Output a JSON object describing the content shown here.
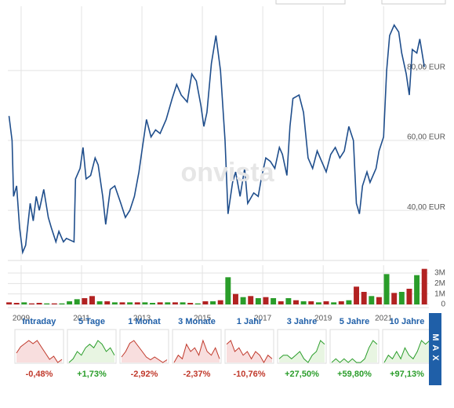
{
  "chart_data": [
    {
      "type": "line",
      "color": "#1f4e8c",
      "grid": true,
      "xlim": [
        2008.56,
        2022.5
      ],
      "xticks": [
        2009,
        2011,
        2013,
        2015,
        2017,
        2019,
        2021
      ],
      "ylim": [
        25,
        95
      ],
      "yticks": [
        {
          "value": 40,
          "label": "40,00 EUR"
        },
        {
          "value": 60,
          "label": "60,00 EUR"
        },
        {
          "value": 80,
          "label": "80,00 EUR"
        }
      ],
      "x": [
        2008.6,
        2008.7,
        2008.75,
        2008.85,
        2008.95,
        2009.05,
        2009.15,
        2009.3,
        2009.4,
        2009.5,
        2009.6,
        2009.75,
        2009.9,
        2010.0,
        2010.15,
        2010.25,
        2010.4,
        2010.5,
        2010.75,
        2010.8,
        2010.95,
        2011.05,
        2011.15,
        2011.3,
        2011.45,
        2011.55,
        2011.7,
        2011.8,
        2011.95,
        2012.1,
        2012.3,
        2012.45,
        2012.6,
        2012.75,
        2012.9,
        2013.0,
        2013.15,
        2013.3,
        2013.45,
        2013.6,
        2013.8,
        2014.0,
        2014.15,
        2014.3,
        2014.5,
        2014.65,
        2014.8,
        2014.95,
        2015.05,
        2015.15,
        2015.3,
        2015.45,
        2015.6,
        2015.75,
        2015.85,
        2016.0,
        2016.1,
        2016.25,
        2016.4,
        2016.5,
        2016.7,
        2016.85,
        2016.95,
        2017.1,
        2017.25,
        2017.4,
        2017.55,
        2017.65,
        2017.8,
        2017.9,
        2018.0,
        2018.2,
        2018.35,
        2018.5,
        2018.65,
        2018.8,
        2018.95,
        2019.1,
        2019.25,
        2019.4,
        2019.55,
        2019.7,
        2019.85,
        2020.0,
        2020.1,
        2020.2,
        2020.3,
        2020.45,
        2020.55,
        2020.75,
        2020.85,
        2021.0,
        2021.1,
        2021.2,
        2021.35,
        2021.5,
        2021.6,
        2021.75,
        2021.85,
        2021.95,
        2022.1,
        2022.2,
        2022.35
      ],
      "values": [
        67,
        60,
        44,
        47,
        35,
        28,
        30,
        42,
        37,
        44,
        40,
        46,
        38,
        35,
        31,
        34,
        31,
        32,
        31,
        49,
        52,
        58,
        49,
        50,
        55,
        53,
        44,
        36,
        46,
        47,
        42,
        38,
        40,
        44,
        51,
        57,
        66,
        61,
        63,
        62,
        66,
        72,
        76,
        73,
        71,
        79,
        77,
        70,
        64,
        68,
        82,
        90,
        80,
        60,
        39,
        48,
        51,
        44,
        52,
        42,
        45,
        44,
        49,
        55,
        54,
        52,
        58,
        56,
        50,
        64,
        72,
        73,
        68,
        55,
        52,
        57,
        54,
        51,
        56,
        58,
        55,
        57,
        64,
        60,
        42,
        39,
        47,
        51,
        48,
        52,
        57,
        61,
        80,
        90,
        93,
        91,
        85,
        79,
        73,
        86,
        85,
        89,
        81
      ]
    },
    {
      "type": "bar",
      "xlim": [
        2008.56,
        2022.5
      ],
      "xticks": [
        2009,
        2011,
        2013,
        2015,
        2017,
        2019,
        2021
      ],
      "ylim": [
        0,
        3.6
      ],
      "yticks": [
        0,
        {
          "value": 1,
          "label": "1M"
        },
        {
          "value": 2,
          "label": "2M"
        },
        {
          "value": 3,
          "label": "3M"
        }
      ],
      "x": [
        2008.6,
        2008.85,
        2009.1,
        2009.35,
        2009.6,
        2009.85,
        2010.1,
        2010.35,
        2010.6,
        2010.85,
        2011.1,
        2011.35,
        2011.6,
        2011.85,
        2012.1,
        2012.35,
        2012.6,
        2012.85,
        2013.1,
        2013.35,
        2013.6,
        2013.85,
        2014.1,
        2014.35,
        2014.6,
        2014.85,
        2015.1,
        2015.35,
        2015.6,
        2015.85,
        2016.1,
        2016.35,
        2016.6,
        2016.85,
        2017.1,
        2017.35,
        2017.6,
        2017.85,
        2018.1,
        2018.35,
        2018.6,
        2018.85,
        2019.1,
        2019.35,
        2019.6,
        2019.85,
        2020.1,
        2020.35,
        2020.6,
        2020.85,
        2021.1,
        2021.35,
        2021.6,
        2021.85,
        2022.1,
        2022.35
      ],
      "values": [
        0.2,
        0.15,
        0.2,
        0.1,
        0.15,
        0.1,
        0.1,
        0.1,
        0.3,
        0.5,
        0.6,
        0.8,
        0.3,
        0.3,
        0.2,
        0.2,
        0.2,
        0.2,
        0.2,
        0.15,
        0.2,
        0.2,
        0.2,
        0.2,
        0.15,
        0.1,
        0.3,
        0.3,
        0.4,
        2.6,
        1.0,
        0.7,
        0.8,
        0.6,
        0.7,
        0.6,
        0.3,
        0.6,
        0.4,
        0.3,
        0.3,
        0.2,
        0.3,
        0.2,
        0.3,
        0.4,
        1.7,
        1.2,
        0.8,
        0.7,
        2.9,
        1.1,
        1.2,
        1.5,
        2.8,
        3.4
      ],
      "colors": [
        "#b22222",
        "#b22222",
        "#2a9d2a",
        "#b22222",
        "#b22222",
        "#2a9d2a",
        "#b22222",
        "#2a9d2a",
        "#2a9d2a",
        "#2a9d2a",
        "#b22222",
        "#b22222",
        "#2a9d2a",
        "#b22222",
        "#2a9d2a",
        "#b22222",
        "#2a9d2a",
        "#b22222",
        "#2a9d2a",
        "#2a9d2a",
        "#b22222",
        "#2a9d2a",
        "#b22222",
        "#2a9d2a",
        "#b22222",
        "#2a9d2a",
        "#b22222",
        "#2a9d2a",
        "#b22222",
        "#2a9d2a",
        "#b22222",
        "#2a9d2a",
        "#b22222",
        "#2a9d2a",
        "#b22222",
        "#2a9d2a",
        "#b22222",
        "#2a9d2a",
        "#b22222",
        "#2a9d2a",
        "#b22222",
        "#2a9d2a",
        "#b22222",
        "#2a9d2a",
        "#b22222",
        "#2a9d2a",
        "#b22222",
        "#b22222",
        "#2a9d2a",
        "#b22222",
        "#2a9d2a",
        "#b22222",
        "#2a9d2a",
        "#b22222",
        "#2a9d2a",
        "#b22222"
      ]
    }
  ],
  "watermark": "onvista",
  "periods": [
    {
      "label": "Intraday",
      "change": -0.48,
      "change_label": "-0,48%",
      "values": [
        5,
        7,
        8,
        9,
        8,
        9,
        7,
        5,
        3,
        4,
        2,
        3
      ]
    },
    {
      "label": "5 Tage",
      "change": 1.73,
      "change_label": "+1,73%",
      "values": [
        3,
        4,
        6,
        5,
        7,
        8,
        7,
        9,
        8,
        6,
        7,
        5
      ]
    },
    {
      "label": "1 Monat",
      "change": -2.92,
      "change_label": "-2,92%",
      "values": [
        4,
        6,
        9,
        10,
        8,
        6,
        4,
        3,
        4,
        3,
        2,
        3
      ]
    },
    {
      "label": "3 Monate",
      "change": -2.37,
      "change_label": "-2,37%",
      "values": [
        3,
        5,
        4,
        8,
        6,
        7,
        5,
        9,
        6,
        5,
        7,
        4
      ]
    },
    {
      "label": "1 Jahr",
      "change": -10.76,
      "change_label": "-10,76%",
      "values": [
        8,
        9,
        6,
        7,
        5,
        6,
        4,
        6,
        5,
        3,
        5,
        4
      ]
    },
    {
      "label": "3 Jahre",
      "change": 27.5,
      "change_label": "+27,50%",
      "values": [
        4,
        5,
        5,
        4,
        5,
        6,
        4,
        3,
        5,
        6,
        9,
        8
      ]
    },
    {
      "label": "5 Jahre",
      "change": 59.8,
      "change_label": "+59,80%",
      "values": [
        3,
        4,
        3,
        4,
        3,
        4,
        3,
        3,
        4,
        7,
        9,
        8
      ]
    },
    {
      "label": "10 Jahre",
      "change": 97.13,
      "change_label": "+97,13%",
      "values": [
        3,
        5,
        4,
        6,
        4,
        7,
        5,
        4,
        6,
        9,
        8,
        9
      ]
    }
  ],
  "max_button": "MAX"
}
